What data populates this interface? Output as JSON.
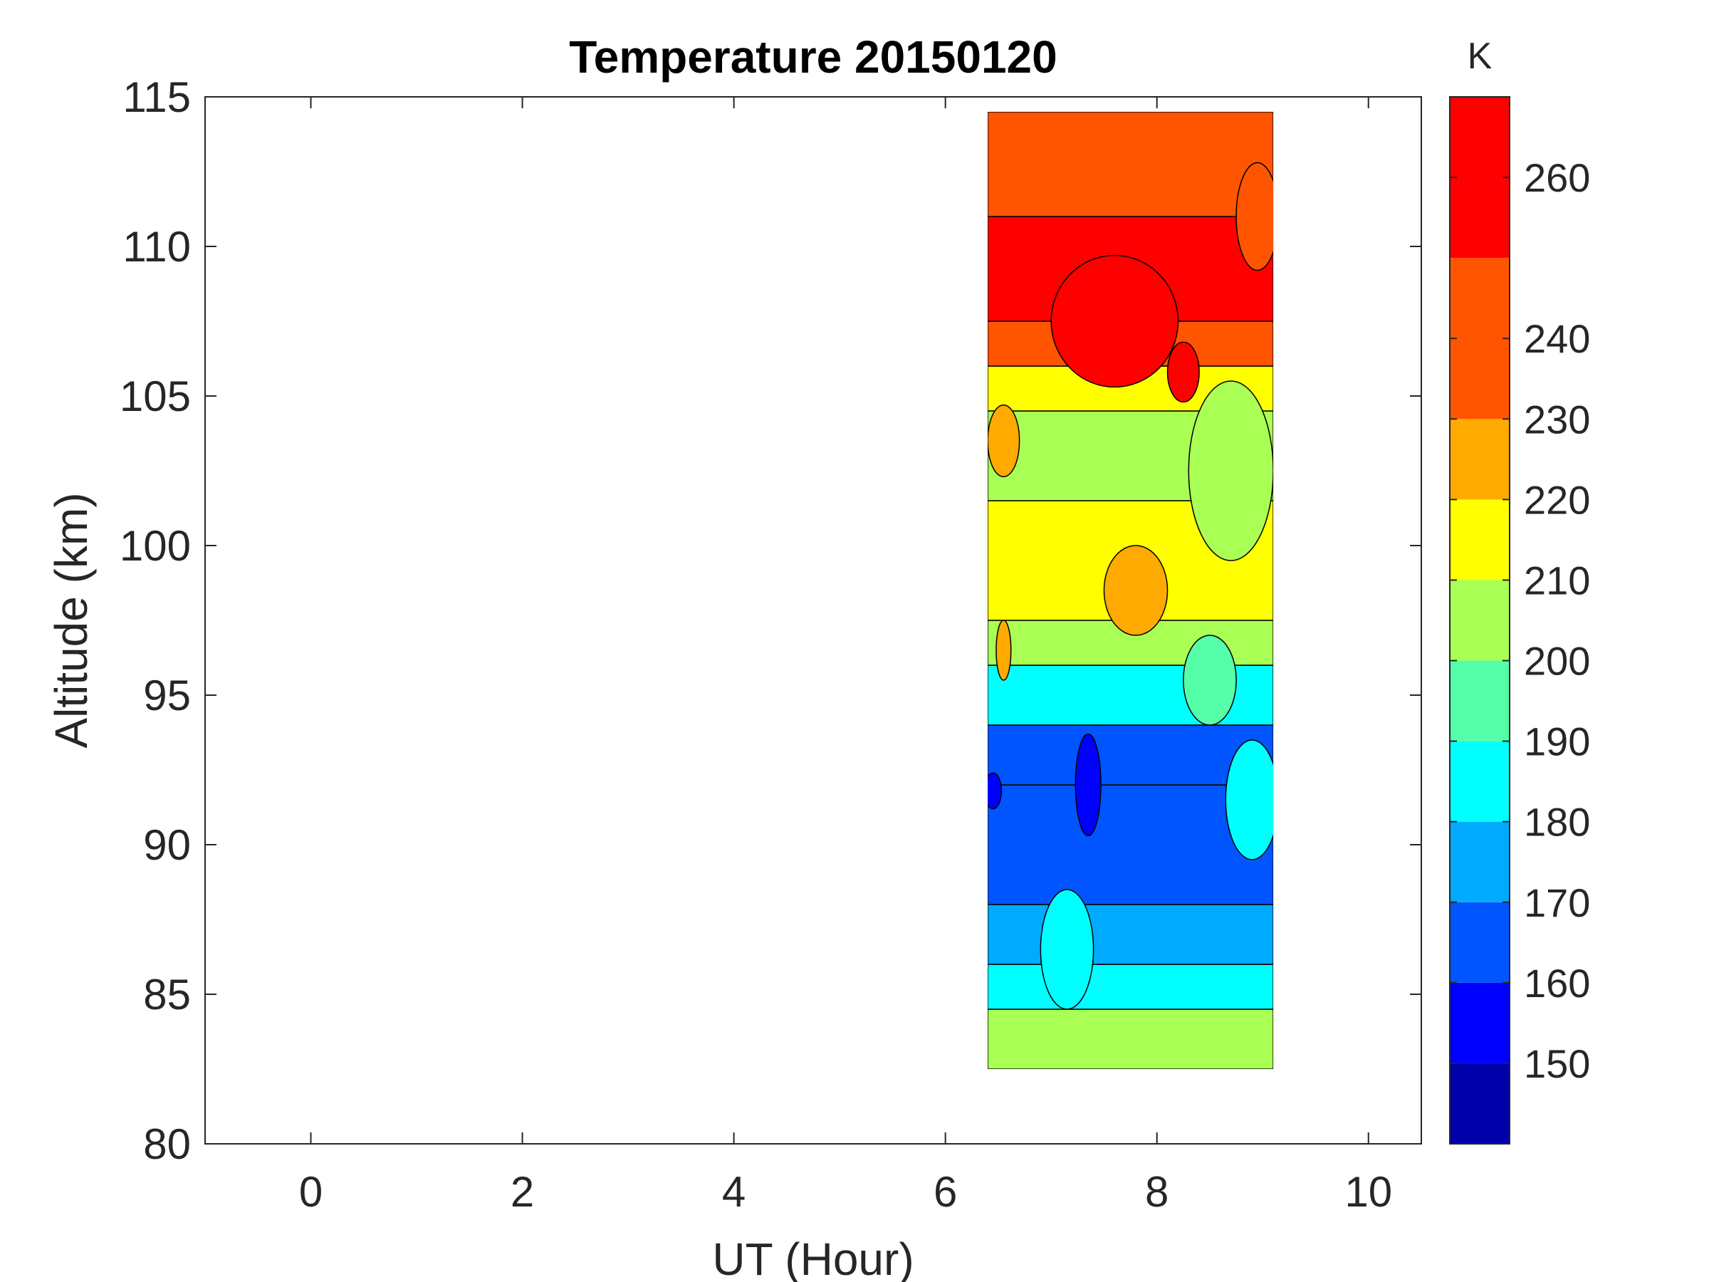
{
  "chart_data": {
    "type": "heatmap",
    "title": "Temperature 20150120",
    "xlabel": "UT (Hour)",
    "ylabel": "Altitude (km)",
    "colorbar_label": "K",
    "xlim": [
      -1,
      10.5
    ],
    "ylim": [
      80,
      115
    ],
    "xticks": [
      0,
      2,
      4,
      6,
      8,
      10
    ],
    "yticks": [
      80,
      85,
      90,
      95,
      100,
      105,
      110,
      115
    ],
    "colorbar": {
      "range": [
        140,
        270
      ],
      "ticks": [
        150,
        160,
        170,
        180,
        190,
        200,
        210,
        220,
        230,
        240,
        260
      ],
      "levels": [
        140,
        150,
        160,
        170,
        180,
        190,
        200,
        210,
        220,
        230,
        250,
        270
      ],
      "colors": [
        "#0000aa",
        "#0000ff",
        "#0055ff",
        "#00aaff",
        "#00ffff",
        "#55ffaa",
        "#aaff55",
        "#ffff00",
        "#ffaa00",
        "#ff5500",
        "#ff0000",
        "#aa0000"
      ]
    },
    "data_extent": {
      "x": [
        6.4,
        9.1
      ],
      "y": [
        82.5,
        114.5
      ]
    },
    "bands": [
      {
        "from": 82.5,
        "to": 84.5,
        "value": 200
      },
      {
        "from": 84.5,
        "to": 86.0,
        "value": 180
      },
      {
        "from": 86.0,
        "to": 88.0,
        "value": 175
      },
      {
        "from": 88.0,
        "to": 92.0,
        "value": 165
      },
      {
        "from": 92.0,
        "to": 94.0,
        "value": 168
      },
      {
        "from": 94.0,
        "to": 96.0,
        "value": 185
      },
      {
        "from": 96.0,
        "to": 97.5,
        "value": 205
      },
      {
        "from": 97.5,
        "to": 101.5,
        "value": 215
      },
      {
        "from": 101.5,
        "to": 104.5,
        "value": 205
      },
      {
        "from": 104.5,
        "to": 106.0,
        "value": 215
      },
      {
        "from": 106.0,
        "to": 107.5,
        "value": 235
      },
      {
        "from": 107.5,
        "to": 111.0,
        "value": 255
      },
      {
        "from": 111.0,
        "to": 114.5,
        "value": 245
      }
    ],
    "patches": [
      {
        "x": 7.35,
        "y": 92.0,
        "rx": 0.12,
        "ry": 1.7,
        "value": 155
      },
      {
        "x": 6.45,
        "y": 91.8,
        "rx": 0.08,
        "ry": 0.6,
        "value": 155
      },
      {
        "x": 7.15,
        "y": 86.5,
        "rx": 0.25,
        "ry": 2.0,
        "value": 185
      },
      {
        "x": 8.9,
        "y": 91.5,
        "rx": 0.25,
        "ry": 2.0,
        "value": 185
      },
      {
        "x": 8.5,
        "y": 95.5,
        "rx": 0.25,
        "ry": 1.5,
        "value": 195
      },
      {
        "x": 8.7,
        "y": 102.5,
        "rx": 0.4,
        "ry": 3.0,
        "value": 205
      },
      {
        "x": 7.8,
        "y": 98.5,
        "rx": 0.3,
        "ry": 1.5,
        "value": 225
      },
      {
        "x": 6.55,
        "y": 103.5,
        "rx": 0.15,
        "ry": 1.2,
        "value": 225
      },
      {
        "x": 7.6,
        "y": 107.5,
        "rx": 0.6,
        "ry": 2.2,
        "value": 265
      },
      {
        "x": 8.25,
        "y": 105.8,
        "rx": 0.15,
        "ry": 1.0,
        "value": 265
      },
      {
        "x": 8.95,
        "y": 111.0,
        "rx": 0.2,
        "ry": 1.8,
        "value": 230
      },
      {
        "x": 6.55,
        "y": 96.5,
        "rx": 0.07,
        "ry": 1.0,
        "value": 225
      }
    ]
  }
}
